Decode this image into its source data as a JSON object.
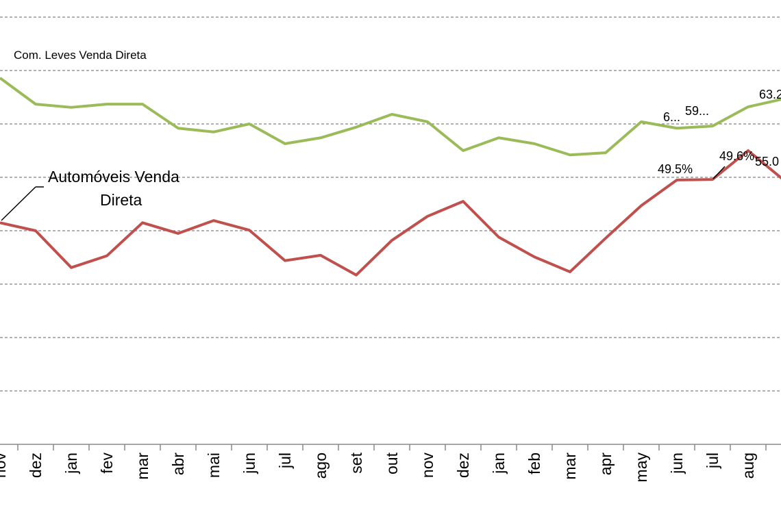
{
  "chart_data": {
    "type": "line",
    "title": "",
    "xlabel": "",
    "ylabel": "",
    "ylim": [
      0,
      80
    ],
    "grid": true,
    "categories": [
      "nov",
      "dez",
      "jan",
      "fev",
      "mar",
      "abr",
      "mai",
      "jun",
      "jul",
      "ago",
      "set",
      "out",
      "nov",
      "dez",
      "jan",
      "feb",
      "mar",
      "apr",
      "may",
      "jun",
      "jul",
      "aug",
      ""
    ],
    "series": [
      {
        "name": "Com. Leves Venda Direta",
        "color": "#9BBB59",
        "values": [
          68.6,
          63.7,
          63.1,
          63.7,
          63.7,
          59.2,
          58.5,
          60.0,
          56.3,
          57.4,
          59.4,
          61.8,
          60.4,
          55.0,
          57.4,
          56.3,
          54.2,
          54.6,
          60.4,
          59.2,
          59.6,
          63.2,
          64.7
        ],
        "data_labels": [
          {
            "index": 19,
            "text": "6..."
          },
          {
            "index": 20,
            "text": "59..."
          },
          {
            "index": 21,
            "text": "63.2"
          }
        ]
      },
      {
        "name": "Automóveis Venda Direta",
        "color": "#C0504D",
        "values": [
          41.5,
          40.0,
          33.1,
          35.3,
          41.5,
          39.5,
          41.9,
          40.1,
          34.4,
          35.4,
          31.7,
          38.2,
          42.7,
          45.5,
          38.8,
          35.1,
          32.3,
          38.6,
          44.7,
          49.5,
          49.6,
          55.0,
          49.5
        ],
        "data_labels": [
          {
            "index": 19,
            "text": "49.5%"
          },
          {
            "index": 20,
            "text": "49.6%"
          },
          {
            "index": 21,
            "text": "55.0"
          }
        ]
      }
    ],
    "series_labels": {
      "com_leves": "Com. Leves Venda Direta",
      "automoveis_line1": "Automóveis Venda",
      "automoveis_line2": "Direta"
    }
  }
}
